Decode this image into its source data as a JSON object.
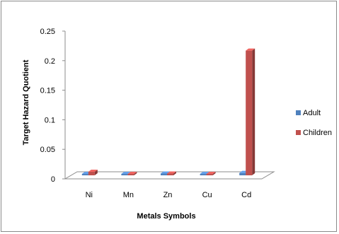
{
  "chart_data": {
    "type": "bar",
    "style": "3d-clustered-column",
    "categories": [
      "Ni",
      "Mn",
      "Zn",
      "Cu",
      "Cd"
    ],
    "series": [
      {
        "name": "Adult",
        "color": "#4f81bd",
        "values": [
          0.002,
          0.001,
          0.003,
          0.001,
          0.004
        ]
      },
      {
        "name": "Children",
        "color": "#c0504d",
        "values": [
          0.006,
          0.002,
          0.003,
          0.002,
          0.211
        ]
      }
    ],
    "xlabel": "Metals Symbols",
    "ylabel": "Target Hazard Quotient",
    "ylim": [
      0,
      0.25
    ],
    "yticks": [
      "0",
      "0.05",
      "0.1",
      "0.15",
      "0.2",
      "0.25"
    ],
    "grid": false,
    "legend_position": "right"
  }
}
